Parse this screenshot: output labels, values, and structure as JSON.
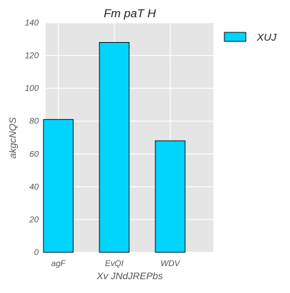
{
  "chart_data": {
    "type": "bar",
    "title": "Fm paT H",
    "xlabel": "Xv JNdJREPbs",
    "ylabel": "akgcNQS",
    "categories": [
      "agF",
      "EvQI",
      "WDV"
    ],
    "series": [
      {
        "name": "XUJ",
        "values": [
          81,
          128,
          68
        ],
        "color": "#00d5ff"
      }
    ],
    "ylim": [
      0,
      140
    ],
    "yticks": [
      0,
      20,
      40,
      60,
      80,
      100,
      120,
      140
    ],
    "grid": true,
    "legend": "top-right, outside plot",
    "background": "#e5e5e5"
  }
}
